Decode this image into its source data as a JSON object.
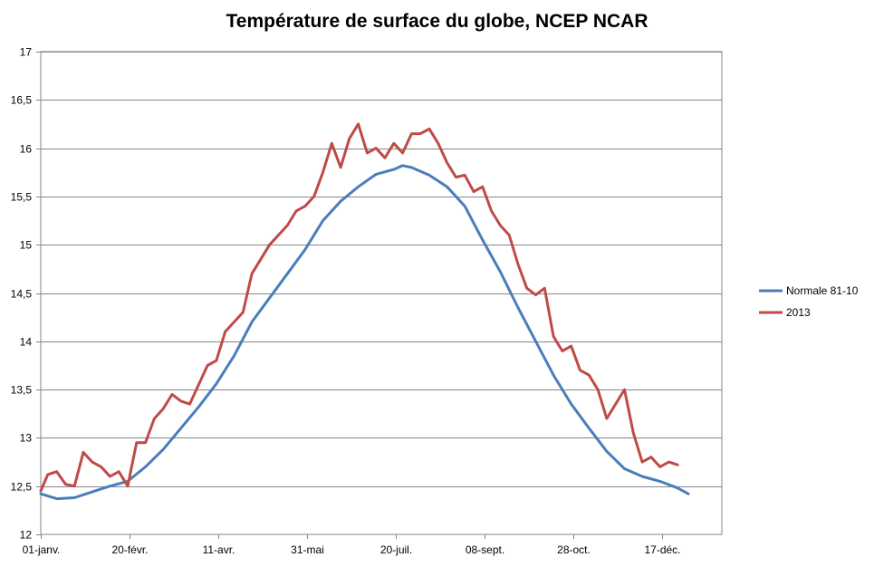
{
  "chart_data": {
    "type": "line",
    "title": "Température de surface du globe, NCEP NCAR",
    "xlabel": "",
    "ylabel": "",
    "ylim": [
      12,
      17
    ],
    "yticks": [
      "12",
      "12,5",
      "13",
      "13,5",
      "14",
      "14,5",
      "15",
      "15,5",
      "16",
      "16,5",
      "17"
    ],
    "yticks_values": [
      12,
      12.5,
      13,
      13.5,
      14,
      14.5,
      15,
      15.5,
      16,
      16.5,
      17
    ],
    "xlim": [
      1,
      366
    ],
    "xticks": [
      "01-janv.",
      "20-févr.",
      "11-avr.",
      "31-mai",
      "20-juil.",
      "08-sept.",
      "28-oct.",
      "17-déc."
    ],
    "xticks_days": [
      1,
      51,
      101,
      151,
      201,
      251,
      301,
      351
    ],
    "grid": true,
    "legend": "right",
    "series": [
      {
        "name": "Normale 81-10",
        "color": "#4a7ebb",
        "x": [
          1,
          10,
          20,
          30,
          40,
          50,
          60,
          70,
          80,
          90,
          100,
          110,
          120,
          130,
          140,
          150,
          160,
          170,
          180,
          190,
          200,
          205,
          210,
          220,
          230,
          240,
          250,
          260,
          270,
          280,
          290,
          300,
          310,
          320,
          330,
          340,
          350,
          360,
          366
        ],
        "values": [
          12.42,
          12.37,
          12.38,
          12.44,
          12.5,
          12.55,
          12.7,
          12.88,
          13.1,
          13.32,
          13.56,
          13.85,
          14.2,
          14.45,
          14.7,
          14.95,
          15.25,
          15.45,
          15.6,
          15.73,
          15.78,
          15.82,
          15.8,
          15.72,
          15.6,
          15.4,
          15.05,
          14.72,
          14.35,
          14.0,
          13.65,
          13.35,
          13.1,
          12.86,
          12.68,
          12.6,
          12.55,
          12.48,
          12.42
        ]
      },
      {
        "name": "2013",
        "color": "#be4b48",
        "x": [
          1,
          5,
          10,
          15,
          20,
          25,
          30,
          35,
          40,
          45,
          50,
          55,
          60,
          65,
          70,
          75,
          80,
          85,
          90,
          95,
          100,
          105,
          110,
          115,
          120,
          125,
          130,
          135,
          140,
          145,
          150,
          155,
          160,
          165,
          170,
          175,
          180,
          185,
          190,
          195,
          200,
          205,
          210,
          215,
          220,
          225,
          230,
          235,
          240,
          245,
          250,
          255,
          260,
          265,
          270,
          275,
          280,
          285,
          290,
          295,
          300,
          305,
          310,
          315,
          320,
          325,
          330,
          335,
          340,
          345,
          350,
          355,
          360
        ],
        "values": [
          12.45,
          12.62,
          12.65,
          12.52,
          12.5,
          12.85,
          12.75,
          12.7,
          12.6,
          12.65,
          12.5,
          12.95,
          12.95,
          13.2,
          13.3,
          13.45,
          13.38,
          13.35,
          13.55,
          13.75,
          13.8,
          14.1,
          14.2,
          14.3,
          14.7,
          14.85,
          15.0,
          15.1,
          15.2,
          15.35,
          15.4,
          15.5,
          15.75,
          16.05,
          15.8,
          16.1,
          16.25,
          15.95,
          16.0,
          15.9,
          16.05,
          15.95,
          16.15,
          16.15,
          16.2,
          16.05,
          15.85,
          15.7,
          15.72,
          15.55,
          15.6,
          15.35,
          15.2,
          15.1,
          14.8,
          14.55,
          14.48,
          14.55,
          14.05,
          13.9,
          13.95,
          13.7,
          13.65,
          13.5,
          13.2,
          13.35,
          13.5,
          13.05,
          12.75,
          12.8,
          12.7,
          12.75,
          12.72
        ]
      }
    ]
  }
}
